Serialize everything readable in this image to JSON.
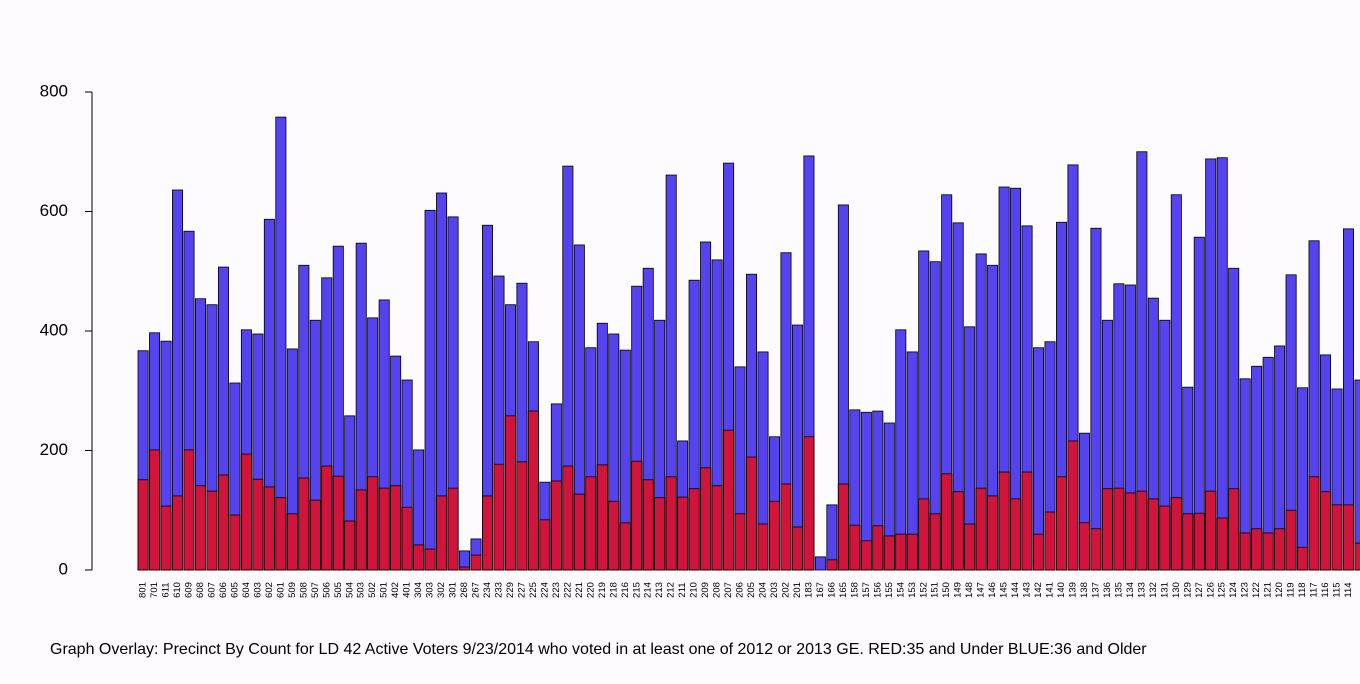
{
  "chart_data": {
    "type": "bar",
    "overlay": true,
    "title": "Graph Overlay: Precinct By Count for LD 42 Active Voters 9/23/2014 who voted in at least one of 2012 or 2013 GE. RED:35 and Under BLUE:36 and Older",
    "categories": [
      "801",
      "701",
      "611",
      "610",
      "609",
      "608",
      "607",
      "606",
      "605",
      "604",
      "603",
      "602",
      "601",
      "509",
      "508",
      "507",
      "506",
      "505",
      "504",
      "503",
      "502",
      "501",
      "402",
      "401",
      "304",
      "303",
      "302",
      "301",
      "268",
      "267",
      "234",
      "233",
      "229",
      "227",
      "225",
      "224",
      "223",
      "222",
      "221",
      "220",
      "219",
      "218",
      "216",
      "215",
      "214",
      "213",
      "212",
      "211",
      "210",
      "209",
      "208",
      "207",
      "206",
      "205",
      "204",
      "203",
      "202",
      "201",
      "183",
      "167",
      "166",
      "165",
      "158",
      "157",
      "156",
      "155",
      "154",
      "153",
      "152",
      "151",
      "150",
      "149",
      "148",
      "147",
      "146",
      "145",
      "144",
      "143",
      "142",
      "141",
      "140",
      "139",
      "138",
      "137",
      "136",
      "135",
      "134",
      "133",
      "132",
      "131",
      "130",
      "129",
      "127",
      "126",
      "125",
      "124",
      "123",
      "122",
      "121",
      "120",
      "119",
      "118",
      "117",
      "116",
      "115",
      "114",
      null
    ],
    "series": [
      {
        "color": "#5443ee",
        "values": [
          367,
          397,
          383,
          636,
          567,
          454,
          444,
          507,
          313,
          402,
          395,
          587,
          758,
          370,
          510,
          418,
          489,
          542,
          258,
          547,
          422,
          452,
          358,
          318,
          201,
          602,
          631,
          591,
          32,
          52,
          577,
          492,
          444,
          480,
          382,
          147,
          278,
          676,
          544,
          372,
          413,
          395,
          368,
          475,
          505,
          418,
          661,
          216,
          485,
          549,
          519,
          681,
          340,
          495,
          365,
          223,
          531,
          410,
          693,
          22,
          109,
          611,
          268,
          264,
          266,
          246,
          402,
          365,
          534,
          516,
          628,
          581,
          407,
          529,
          510,
          641,
          639,
          576,
          372,
          382,
          582,
          678,
          229,
          572,
          418,
          479,
          477,
          700,
          455,
          418,
          628,
          306,
          557,
          688,
          690,
          505,
          320,
          341,
          356,
          375,
          494,
          305,
          551,
          360,
          303,
          571,
          318
        ]
      },
      {
        "color": "#d0143c",
        "values": [
          151,
          201,
          107,
          124,
          201,
          141,
          132,
          159,
          92,
          194,
          152,
          139,
          121,
          94,
          154,
          117,
          174,
          157,
          82,
          134,
          156,
          137,
          141,
          105,
          42,
          35,
          124,
          137,
          5,
          25,
          124,
          177,
          258,
          181,
          266,
          84,
          149,
          174,
          127,
          156,
          176,
          115,
          79,
          182,
          151,
          121,
          156,
          122,
          136,
          171,
          141,
          234,
          94,
          189,
          77,
          115,
          144,
          72,
          223,
          0,
          17,
          144,
          75,
          49,
          74,
          57,
          60,
          60,
          119,
          94,
          161,
          131,
          77,
          137,
          124,
          164,
          119,
          164,
          60,
          97,
          156,
          216,
          79,
          69,
          136,
          137,
          129,
          132,
          119,
          107,
          121,
          94,
          95,
          132,
          87,
          136,
          62,
          69,
          62,
          69,
          100,
          38,
          156,
          131,
          109,
          109,
          45
        ]
      }
    ],
    "ylim": [
      0,
      800
    ],
    "yticks": [
      0,
      200,
      400,
      600,
      800
    ]
  }
}
